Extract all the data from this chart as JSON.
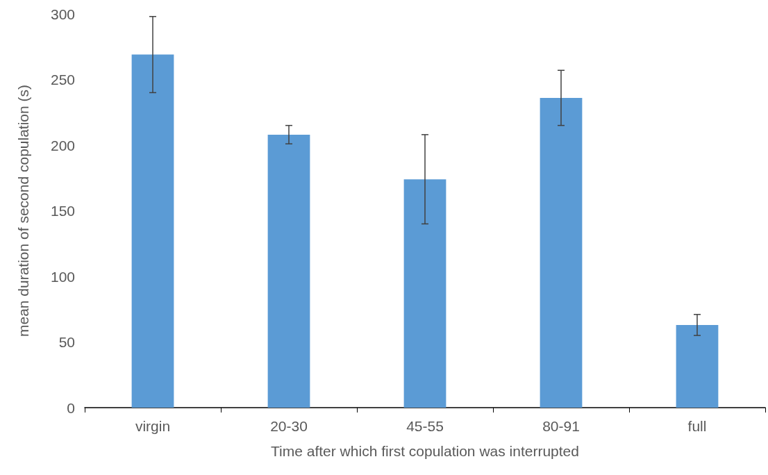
{
  "chart_data": {
    "type": "bar",
    "xlabel": "Time after which first copulation was interrupted",
    "ylabel": "mean duration of second copulation (s)",
    "categories": [
      "virgin",
      "20-30",
      "45-55",
      "80-91",
      "full"
    ],
    "values": [
      269,
      208,
      174,
      236,
      63
    ],
    "errors": [
      29,
      7,
      34,
      21,
      8
    ],
    "color": "#5b9bd5",
    "ylim": [
      0,
      300
    ],
    "yticks": [
      0,
      50,
      100,
      150,
      200,
      250,
      300
    ],
    "grid": false
  }
}
